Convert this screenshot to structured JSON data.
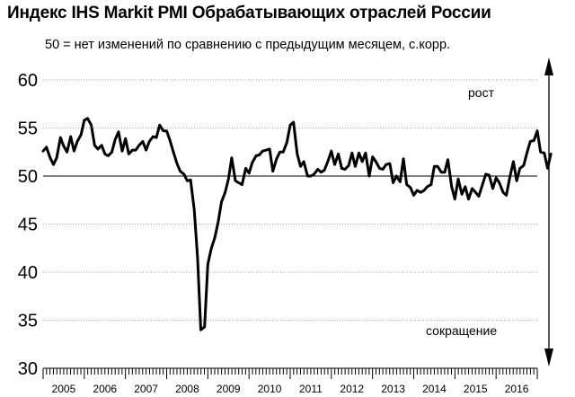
{
  "title": "Индекс IHS Markit PMI Обрабатывающих отраслей России",
  "subtitle": "50 = нет изменений по сравнению с предыдущим месяцем, с.корр.",
  "chart_data": {
    "type": "line",
    "title": "Индекс IHS Markit PMI Обрабатывающих отраслей России",
    "subtitle": "50 = нет изменений по сравнению с предыдущим месяцем, с.корр.",
    "ylim": [
      30,
      60
    ],
    "yticks": [
      30,
      35,
      40,
      45,
      50,
      55,
      60
    ],
    "xlim": [
      2005.0,
      2017.0
    ],
    "xticks": [
      "2005",
      "2006",
      "2007",
      "2008",
      "2009",
      "2010",
      "2011",
      "2012",
      "2013",
      "2014",
      "2015",
      "2016"
    ],
    "reference_line": 50,
    "annotations": {
      "up": "рост",
      "down": "сокращение"
    },
    "colors": {
      "line": "#000000",
      "grid": "#999999"
    },
    "grid": "horizontal dotted",
    "series": [
      {
        "points": [
          [
            2005.0,
            52.6
          ],
          [
            2005.08,
            53.0
          ],
          [
            2005.17,
            51.9
          ],
          [
            2005.25,
            51.2
          ],
          [
            2005.33,
            51.9
          ],
          [
            2005.42,
            54.0
          ],
          [
            2005.5,
            53.1
          ],
          [
            2005.58,
            52.5
          ],
          [
            2005.67,
            54.1
          ],
          [
            2005.75,
            52.6
          ],
          [
            2005.83,
            53.6
          ],
          [
            2005.92,
            54.3
          ],
          [
            2006.0,
            55.8
          ],
          [
            2006.08,
            56.0
          ],
          [
            2006.17,
            55.3
          ],
          [
            2006.25,
            53.2
          ],
          [
            2006.33,
            52.8
          ],
          [
            2006.42,
            53.2
          ],
          [
            2006.5,
            52.3
          ],
          [
            2006.58,
            52.1
          ],
          [
            2006.67,
            52.5
          ],
          [
            2006.75,
            53.8
          ],
          [
            2006.83,
            54.6
          ],
          [
            2006.92,
            52.6
          ],
          [
            2007.0,
            53.9
          ],
          [
            2007.08,
            52.3
          ],
          [
            2007.17,
            52.7
          ],
          [
            2007.25,
            52.7
          ],
          [
            2007.33,
            53.2
          ],
          [
            2007.42,
            53.6
          ],
          [
            2007.5,
            52.7
          ],
          [
            2007.58,
            53.6
          ],
          [
            2007.67,
            54.1
          ],
          [
            2007.75,
            54.0
          ],
          [
            2007.83,
            55.3
          ],
          [
            2007.92,
            54.7
          ],
          [
            2008.0,
            54.7
          ],
          [
            2008.08,
            53.7
          ],
          [
            2008.17,
            52.4
          ],
          [
            2008.25,
            51.3
          ],
          [
            2008.33,
            50.5
          ],
          [
            2008.42,
            50.2
          ],
          [
            2008.5,
            49.5
          ],
          [
            2008.58,
            49.6
          ],
          [
            2008.67,
            46.5
          ],
          [
            2008.75,
            41.5
          ],
          [
            2008.83,
            34.0
          ],
          [
            2008.92,
            34.3
          ],
          [
            2009.0,
            40.8
          ],
          [
            2009.08,
            42.4
          ],
          [
            2009.17,
            43.6
          ],
          [
            2009.25,
            45.2
          ],
          [
            2009.33,
            47.3
          ],
          [
            2009.42,
            48.3
          ],
          [
            2009.5,
            49.7
          ],
          [
            2009.58,
            51.9
          ],
          [
            2009.67,
            49.5
          ],
          [
            2009.75,
            49.3
          ],
          [
            2009.83,
            49.1
          ],
          [
            2009.92,
            50.8
          ],
          [
            2010.0,
            50.3
          ],
          [
            2010.08,
            51.4
          ],
          [
            2010.17,
            52.1
          ],
          [
            2010.25,
            52.2
          ],
          [
            2010.33,
            52.6
          ],
          [
            2010.42,
            52.7
          ],
          [
            2010.5,
            52.8
          ],
          [
            2010.58,
            50.5
          ],
          [
            2010.67,
            51.8
          ],
          [
            2010.75,
            52.5
          ],
          [
            2010.83,
            52.5
          ],
          [
            2010.92,
            53.5
          ],
          [
            2011.0,
            55.3
          ],
          [
            2011.08,
            55.6
          ],
          [
            2011.17,
            52.3
          ],
          [
            2011.25,
            51.0
          ],
          [
            2011.33,
            51.5
          ],
          [
            2011.42,
            50.0
          ],
          [
            2011.5,
            50.0
          ],
          [
            2011.58,
            50.2
          ],
          [
            2011.67,
            50.7
          ],
          [
            2011.75,
            50.4
          ],
          [
            2011.83,
            50.6
          ],
          [
            2011.92,
            51.6
          ],
          [
            2012.0,
            52.6
          ],
          [
            2012.08,
            51.2
          ],
          [
            2012.17,
            52.3
          ],
          [
            2012.25,
            50.8
          ],
          [
            2012.33,
            50.7
          ],
          [
            2012.42,
            51.1
          ],
          [
            2012.5,
            52.4
          ],
          [
            2012.58,
            51.0
          ],
          [
            2012.67,
            52.4
          ],
          [
            2012.75,
            51.5
          ],
          [
            2012.83,
            52.4
          ],
          [
            2012.92,
            50.0
          ],
          [
            2013.0,
            52.0
          ],
          [
            2013.08,
            51.5
          ],
          [
            2013.17,
            50.8
          ],
          [
            2013.25,
            50.7
          ],
          [
            2013.33,
            51.2
          ],
          [
            2013.42,
            51.3
          ],
          [
            2013.5,
            49.3
          ],
          [
            2013.58,
            50.0
          ],
          [
            2013.67,
            49.4
          ],
          [
            2013.75,
            51.8
          ],
          [
            2013.83,
            49.1
          ],
          [
            2013.92,
            48.8
          ],
          [
            2014.0,
            48.0
          ],
          [
            2014.08,
            48.5
          ],
          [
            2014.17,
            48.3
          ],
          [
            2014.25,
            48.5
          ],
          [
            2014.33,
            48.9
          ],
          [
            2014.42,
            49.1
          ],
          [
            2014.5,
            51.0
          ],
          [
            2014.58,
            51.0
          ],
          [
            2014.67,
            50.4
          ],
          [
            2014.75,
            50.4
          ],
          [
            2014.83,
            51.7
          ],
          [
            2014.92,
            48.9
          ],
          [
            2015.0,
            47.6
          ],
          [
            2015.08,
            49.7
          ],
          [
            2015.17,
            48.1
          ],
          [
            2015.25,
            48.9
          ],
          [
            2015.33,
            47.6
          ],
          [
            2015.42,
            48.7
          ],
          [
            2015.5,
            48.3
          ],
          [
            2015.58,
            47.9
          ],
          [
            2015.67,
            49.1
          ],
          [
            2015.75,
            50.2
          ],
          [
            2015.83,
            50.1
          ],
          [
            2015.92,
            48.7
          ],
          [
            2016.0,
            49.8
          ],
          [
            2016.08,
            49.3
          ],
          [
            2016.17,
            48.3
          ],
          [
            2016.25,
            48.0
          ],
          [
            2016.33,
            49.8
          ],
          [
            2016.42,
            51.5
          ],
          [
            2016.5,
            49.5
          ],
          [
            2016.58,
            50.8
          ],
          [
            2016.67,
            51.1
          ],
          [
            2016.75,
            52.4
          ],
          [
            2016.83,
            53.6
          ],
          [
            2016.92,
            53.7
          ],
          [
            2017.0,
            54.7
          ],
          [
            2017.08,
            52.5
          ],
          [
            2017.17,
            52.4
          ],
          [
            2017.25,
            50.8
          ],
          [
            2017.33,
            52.3
          ]
        ]
      }
    ]
  }
}
